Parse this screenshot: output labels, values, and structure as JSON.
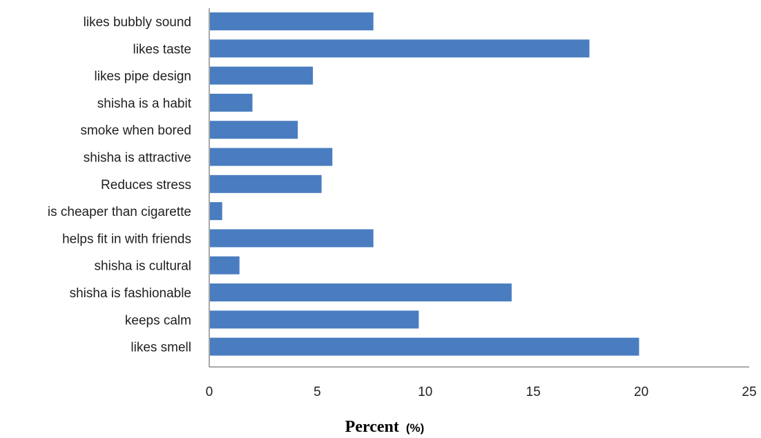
{
  "chart_data": {
    "type": "bar",
    "orientation": "horizontal",
    "categories": [
      "likes bubbly sound",
      "likes taste",
      "likes pipe design",
      "shisha is a habit",
      "smoke when bored",
      "shisha is attractive",
      "Reduces stress",
      "is cheaper than cigarette",
      "helps fit in with friends",
      "shisha is cultural",
      "shisha is fashionable",
      "keeps calm",
      "likes smell"
    ],
    "values": [
      7.6,
      17.6,
      4.8,
      2.0,
      4.1,
      5.7,
      5.2,
      0.6,
      7.6,
      1.4,
      14.0,
      9.7,
      19.9
    ],
    "xlabel": "Percent",
    "xlabel_unit": "(%)",
    "xlim": [
      0,
      25
    ],
    "x_ticks": [
      "0",
      "5",
      "10",
      "15",
      "20",
      "25"
    ],
    "grid": false,
    "legend": "none",
    "bar_color": "#4a7dc0"
  }
}
